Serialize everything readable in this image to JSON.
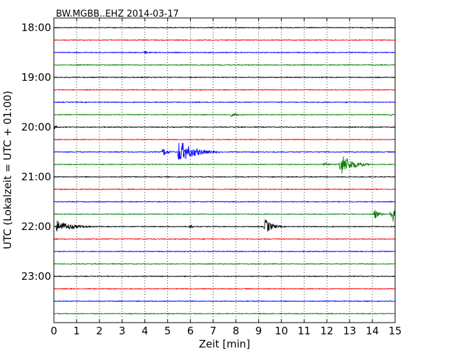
{
  "chart_data": {
    "type": "line",
    "title": "BW.MGBB..EHZ 2014-03-17",
    "xlabel": "Zeit  [min]",
    "ylabel": "UTC (Lokalzeit = UTC + 01:00)",
    "xlim": [
      0,
      15
    ],
    "x_ticks": [
      "0",
      "1",
      "2",
      "3",
      "4",
      "5",
      "6",
      "7",
      "8",
      "9",
      "10",
      "11",
      "12",
      "13",
      "14",
      "15"
    ],
    "y_ticks": [
      {
        "label": "18:00",
        "row": 0
      },
      {
        "label": "19:00",
        "row": 4
      },
      {
        "label": "20:00",
        "row": 8
      },
      {
        "label": "21:00",
        "row": 12
      },
      {
        "label": "22:00",
        "row": 16
      },
      {
        "label": "23:00",
        "row": 20
      }
    ],
    "trace_interval_min": 15,
    "trace_colors": [
      "#000000",
      "#ff0000",
      "#0000ff",
      "#008000"
    ],
    "grid": "vertical dotted",
    "traces": [
      {
        "start": "18:00",
        "events": []
      },
      {
        "start": "18:15",
        "events": []
      },
      {
        "start": "18:30",
        "events": [
          {
            "t": 4.0,
            "amp": 0.25,
            "dur": 0.5
          }
        ]
      },
      {
        "start": "18:45",
        "events": []
      },
      {
        "start": "19:00",
        "events": [
          {
            "t": 14.3,
            "amp": 0.1,
            "dur": 0.2
          }
        ]
      },
      {
        "start": "19:15",
        "events": []
      },
      {
        "start": "19:30",
        "events": []
      },
      {
        "start": "19:45",
        "events": [
          {
            "t": 6.6,
            "amp": 0.15,
            "dur": 0.3
          },
          {
            "t": 7.8,
            "amp": 0.3,
            "dur": 1.2
          },
          {
            "t": 14.8,
            "amp": 0.2,
            "dur": 0.3
          }
        ]
      },
      {
        "start": "20:00",
        "events": [
          {
            "t": 0.0,
            "amp": 0.35,
            "dur": 0.5
          },
          {
            "t": 2.4,
            "amp": 0.12,
            "dur": 0.3
          },
          {
            "t": 13.9,
            "amp": 0.15,
            "dur": 0.3
          }
        ]
      },
      {
        "start": "20:15",
        "events": []
      },
      {
        "start": "20:30",
        "events": [
          {
            "t": 4.8,
            "amp": 0.7,
            "dur": 0.6
          },
          {
            "t": 5.5,
            "amp": 1.9,
            "dur": 1.8
          }
        ]
      },
      {
        "start": "20:45",
        "events": [
          {
            "t": 11.9,
            "amp": 0.5,
            "dur": 0.5
          },
          {
            "t": 12.6,
            "amp": 1.85,
            "dur": 1.4
          }
        ]
      },
      {
        "start": "21:00",
        "events": []
      },
      {
        "start": "21:15",
        "events": []
      },
      {
        "start": "21:30",
        "events": []
      },
      {
        "start": "21:45",
        "events": [
          {
            "t": 14.1,
            "amp": 0.8,
            "dur": 0.6
          },
          {
            "t": 14.85,
            "amp": 1.9,
            "dur": 0.4
          }
        ]
      },
      {
        "start": "22:00",
        "events": [
          {
            "t": 0.15,
            "amp": 1.0,
            "dur": 1.8
          },
          {
            "t": 6.0,
            "amp": 0.45,
            "dur": 0.25
          },
          {
            "t": 9.3,
            "amp": 1.3,
            "dur": 0.8
          }
        ]
      },
      {
        "start": "22:15",
        "events": []
      },
      {
        "start": "22:30",
        "events": []
      },
      {
        "start": "22:45",
        "events": []
      },
      {
        "start": "23:00",
        "events": []
      },
      {
        "start": "23:15",
        "events": []
      },
      {
        "start": "23:30",
        "events": []
      },
      {
        "start": "23:45",
        "events": []
      }
    ]
  }
}
